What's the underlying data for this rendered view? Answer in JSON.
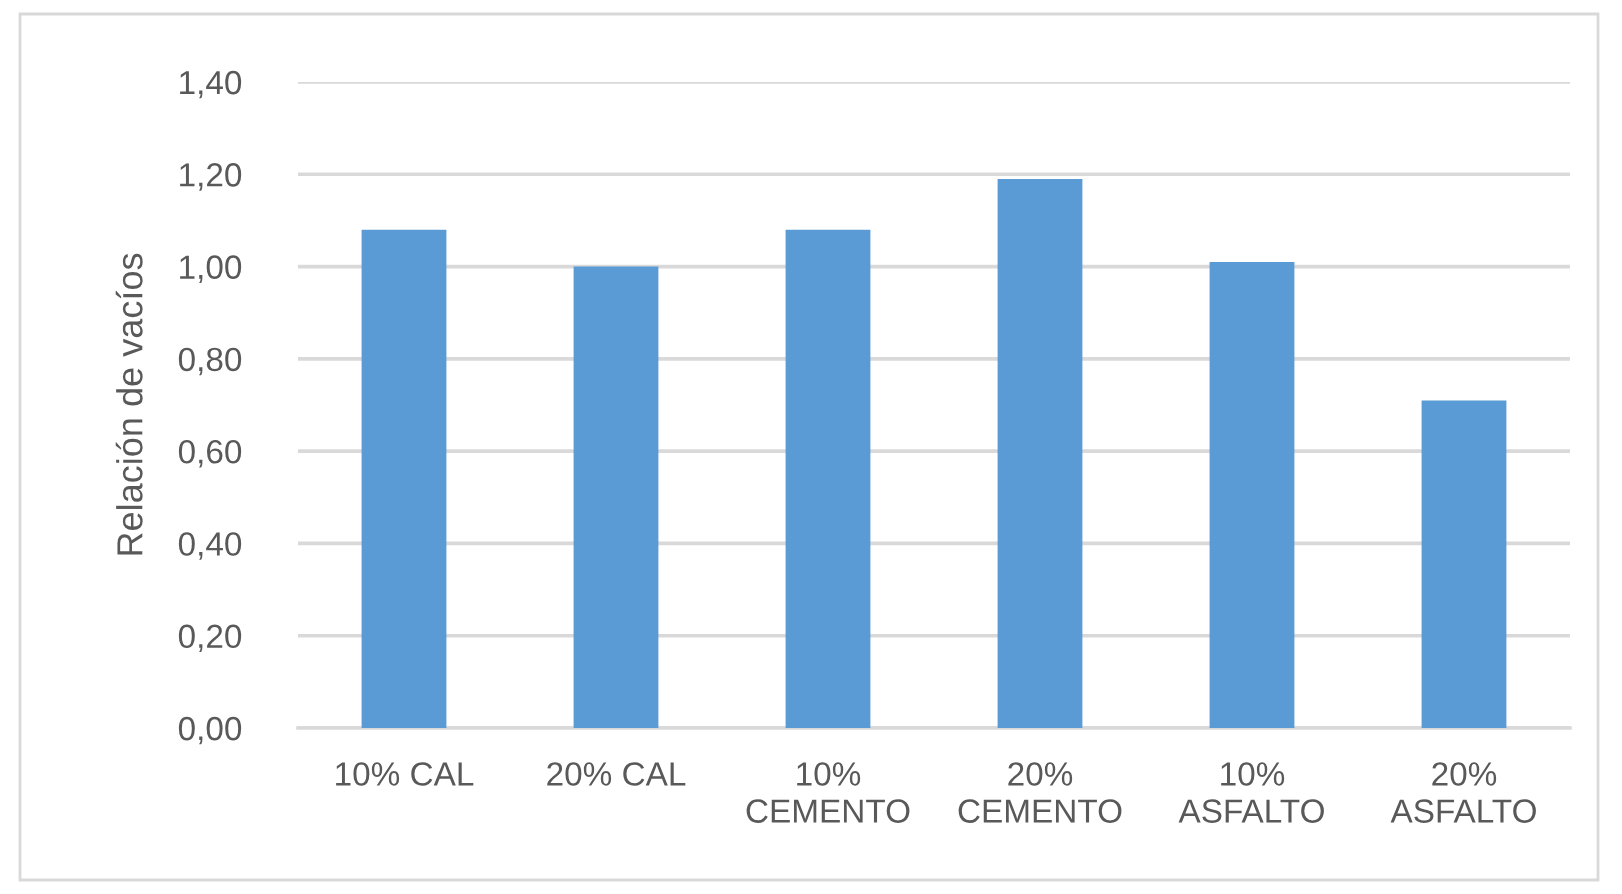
{
  "chart_data": {
    "type": "bar",
    "ylabel": "Relación de vacíos",
    "categories": [
      "10% CAL",
      "20% CAL",
      "10% CEMENTO",
      "20% CEMENTO",
      "10% ASFALTO",
      "20% ASFALTO"
    ],
    "values": [
      1.08,
      1.0,
      1.08,
      1.19,
      1.01,
      0.71
    ],
    "color": "#5b9bd5",
    "ylim": [
      0,
      1.4
    ],
    "yticks": [
      {
        "value": 0,
        "label": "0,00"
      },
      {
        "value": 0.2,
        "label": "0,20"
      },
      {
        "value": 0.4,
        "label": "0,40"
      },
      {
        "value": 0.6,
        "label": "0,60"
      },
      {
        "value": 0.8,
        "label": "0,80"
      },
      {
        "value": 1.0,
        "label": "1,00"
      },
      {
        "value": 1.2,
        "label": "1,20"
      },
      {
        "value": 1.4,
        "label": "1,40"
      }
    ],
    "grid": "y"
  }
}
